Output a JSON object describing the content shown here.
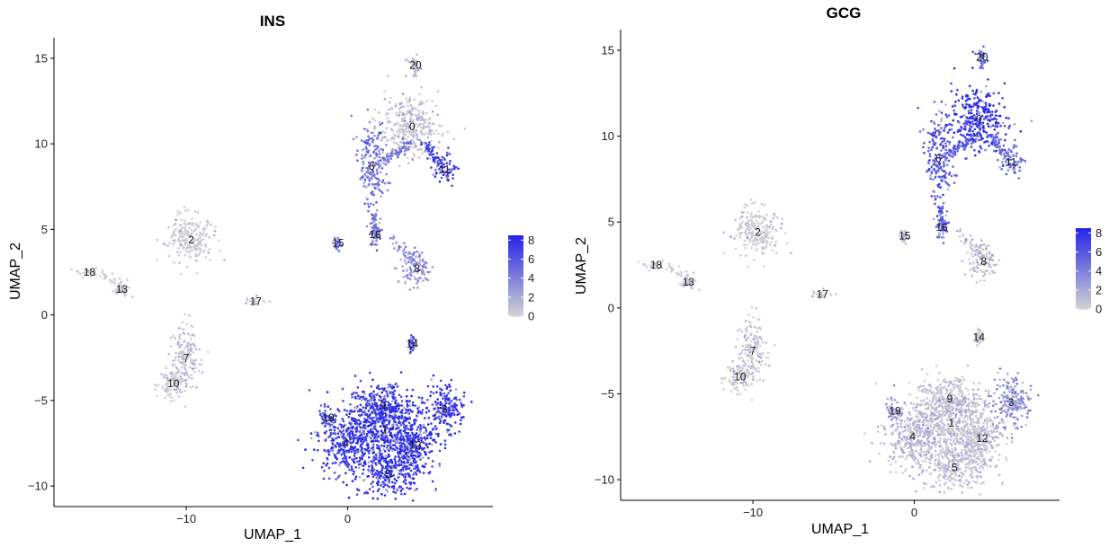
{
  "chart_data": [
    {
      "type": "scatter",
      "title": "INS",
      "xlabel": "UMAP_1",
      "ylabel": "UMAP_2",
      "xlim": [
        -18.2,
        9.0
      ],
      "ylim": [
        -11.2,
        16.2
      ],
      "xticks": [
        -10,
        0
      ],
      "yticks": [
        -10,
        -5,
        0,
        5,
        10,
        15
      ],
      "grid": false,
      "legend": {
        "position": "right",
        "min": 0,
        "max": 8.5,
        "ticks": [
          0,
          2,
          4,
          6,
          8
        ],
        "colors": [
          "#d3d3d3",
          "#2323e8"
        ]
      },
      "clusters": [
        {
          "label": "0",
          "x": 4.0,
          "y": 11.0,
          "expr": 0.8
        },
        {
          "label": "1",
          "x": 2.3,
          "y": -6.7,
          "expr": 7.6
        },
        {
          "label": "2",
          "x": -9.7,
          "y": 4.4,
          "expr": 0.2
        },
        {
          "label": "3",
          "x": 6.0,
          "y": -5.5,
          "expr": 7.6
        },
        {
          "label": "4",
          "x": -0.1,
          "y": -7.5,
          "expr": 7.4
        },
        {
          "label": "5",
          "x": 2.5,
          "y": -9.3,
          "expr": 7.6
        },
        {
          "label": "6",
          "x": 1.5,
          "y": 8.7,
          "expr": 4.6
        },
        {
          "label": "7",
          "x": -10.0,
          "y": -2.5,
          "expr": 0.6
        },
        {
          "label": "8",
          "x": 4.3,
          "y": 2.7,
          "expr": 3.2
        },
        {
          "label": "9",
          "x": 2.2,
          "y": -5.3,
          "expr": 7.6
        },
        {
          "label": "10",
          "x": -10.8,
          "y": -4.0,
          "expr": 0.3
        },
        {
          "label": "11",
          "x": 6.0,
          "y": 8.5,
          "expr": 7.0
        },
        {
          "label": "12",
          "x": 4.2,
          "y": -7.6,
          "expr": 7.6
        },
        {
          "label": "13",
          "x": -14.0,
          "y": 1.5,
          "expr": 0.3
        },
        {
          "label": "14",
          "x": 4.0,
          "y": -1.7,
          "expr": 7.0
        },
        {
          "label": "15",
          "x": -0.6,
          "y": 4.2,
          "expr": 5.0
        },
        {
          "label": "16",
          "x": 1.7,
          "y": 4.7,
          "expr": 5.0
        },
        {
          "label": "17",
          "x": -5.7,
          "y": 0.8,
          "expr": 0.5
        },
        {
          "label": "18",
          "x": -16.0,
          "y": 2.5,
          "expr": 0.2
        },
        {
          "label": "19",
          "x": -1.2,
          "y": -6.0,
          "expr": 6.0
        },
        {
          "label": "20",
          "x": 4.2,
          "y": 14.6,
          "expr": 1.0
        }
      ]
    },
    {
      "type": "scatter",
      "title": "GCG",
      "xlabel": "UMAP_1",
      "ylabel": "UMAP_2",
      "xlim": [
        -18.2,
        9.0
      ],
      "ylim": [
        -11.2,
        16.2
      ],
      "xticks": [
        -10,
        0
      ],
      "yticks": [
        -10,
        -5,
        0,
        5,
        10,
        15
      ],
      "grid": false,
      "legend": {
        "position": "right",
        "min": 0,
        "max": 8.5,
        "ticks": [
          0,
          2,
          4,
          6,
          8
        ],
        "colors": [
          "#d3d3d3",
          "#2323e8"
        ]
      },
      "clusters": [
        {
          "label": "0",
          "x": 4.0,
          "y": 11.0,
          "expr": 8.0
        },
        {
          "label": "1",
          "x": 2.3,
          "y": -6.7,
          "expr": 0.8
        },
        {
          "label": "2",
          "x": -9.7,
          "y": 4.4,
          "expr": 0.3
        },
        {
          "label": "3",
          "x": 6.0,
          "y": -5.5,
          "expr": 3.4
        },
        {
          "label": "4",
          "x": -0.1,
          "y": -7.5,
          "expr": 1.2
        },
        {
          "label": "5",
          "x": 2.5,
          "y": -9.3,
          "expr": 0.8
        },
        {
          "label": "6",
          "x": 1.5,
          "y": 8.7,
          "expr": 6.0
        },
        {
          "label": "7",
          "x": -10.0,
          "y": -2.5,
          "expr": 0.3
        },
        {
          "label": "8",
          "x": 4.3,
          "y": 2.7,
          "expr": 0.8
        },
        {
          "label": "9",
          "x": 2.2,
          "y": -5.3,
          "expr": 0.8
        },
        {
          "label": "10",
          "x": -10.8,
          "y": -4.0,
          "expr": 0.3
        },
        {
          "label": "11",
          "x": 6.0,
          "y": 8.5,
          "expr": 5.0
        },
        {
          "label": "12",
          "x": 4.2,
          "y": -7.6,
          "expr": 0.8
        },
        {
          "label": "13",
          "x": -14.0,
          "y": 1.5,
          "expr": 0.3
        },
        {
          "label": "14",
          "x": 4.0,
          "y": -1.7,
          "expr": 0.4
        },
        {
          "label": "15",
          "x": -0.6,
          "y": 4.2,
          "expr": 1.5
        },
        {
          "label": "16",
          "x": 1.7,
          "y": 4.7,
          "expr": 4.0
        },
        {
          "label": "17",
          "x": -5.7,
          "y": 0.8,
          "expr": 0.4
        },
        {
          "label": "18",
          "x": -16.0,
          "y": 2.5,
          "expr": 0.3
        },
        {
          "label": "19",
          "x": -1.2,
          "y": -6.0,
          "expr": 2.5
        },
        {
          "label": "20",
          "x": 4.2,
          "y": 14.6,
          "expr": 5.0
        }
      ]
    }
  ]
}
